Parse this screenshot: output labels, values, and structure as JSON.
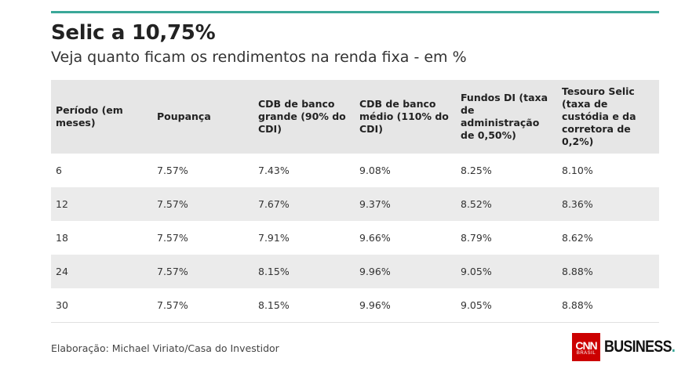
{
  "title": "Selic a 10,75%",
  "subtitle": "Veja quanto ficam os rendimentos na renda fixa - em %",
  "source": "Elaboração: Michael Viriato/Casa do Investidor",
  "brand": {
    "main": "CNN",
    "sub": "BRASIL",
    "business": "BUSINESS",
    "dot": "."
  },
  "colors": {
    "accent": "#3aa898",
    "header_bg": "#e6e6e6",
    "stripe_bg": "#ebebeb",
    "cnn_red": "#cc0000"
  },
  "chart_data": {
    "type": "table",
    "title": "Selic a 10,75%",
    "subtitle": "Veja quanto ficam os rendimentos na renda fixa - em %",
    "columns": [
      "Período (em meses)",
      "Poupança",
      "CDB de banco grande (90% do CDI)",
      "CDB de banco médio (110% do CDI)",
      "Fundos DI (taxa de administração de 0,50%)",
      "Tesouro Selic (taxa de custódia e da corretora de 0,2%)"
    ],
    "rows": [
      [
        "6",
        "7.57%",
        "7.43%",
        "9.08%",
        "8.25%",
        "8.10%"
      ],
      [
        "12",
        "7.57%",
        "7.67%",
        "9.37%",
        "8.52%",
        "8.36%"
      ],
      [
        "18",
        "7.57%",
        "7.91%",
        "9.66%",
        "8.79%",
        "8.62%"
      ],
      [
        "24",
        "7.57%",
        "8.15%",
        "9.96%",
        "9.05%",
        "8.88%"
      ],
      [
        "30",
        "7.57%",
        "8.15%",
        "9.96%",
        "9.05%",
        "8.88%"
      ]
    ],
    "source": "Elaboração: Michael Viriato/Casa do Investidor"
  }
}
